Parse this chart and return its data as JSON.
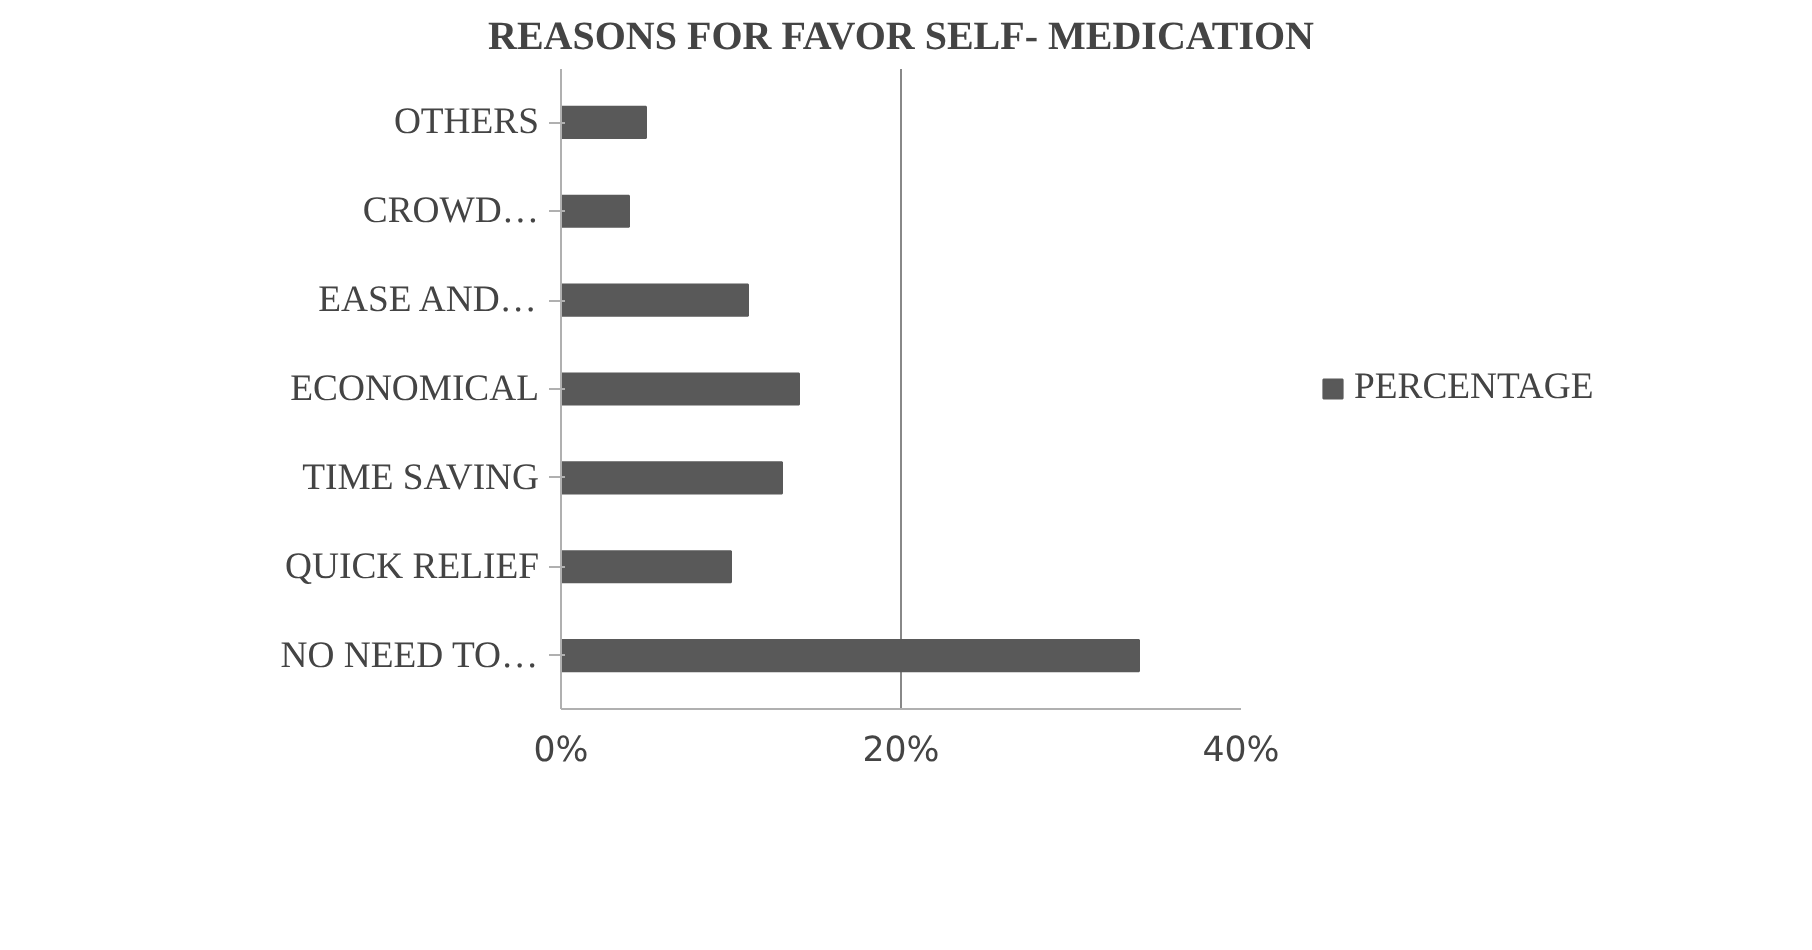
{
  "chart_data": {
    "type": "bar",
    "orientation": "horizontal",
    "title": "REASONS FOR FAVOR SELF- MEDICATION",
    "categories": [
      "OTHERS",
      "CROWD…",
      "EASE AND…",
      "ECONOMICAL",
      "TIME SAVING",
      "QUICK RELIEF",
      "NO NEED TO…"
    ],
    "series": [
      {
        "name": "PERCENTAGE",
        "color": "#595959",
        "values": [
          5,
          4,
          11,
          14,
          13,
          10,
          34
        ]
      }
    ],
    "xlim": [
      0,
      40
    ],
    "xticks": [
      {
        "value": 0,
        "label": "0%"
      },
      {
        "value": 20,
        "label": "20%"
      },
      {
        "value": 40,
        "label": "40%"
      }
    ],
    "grid": "x",
    "legend": "right"
  }
}
